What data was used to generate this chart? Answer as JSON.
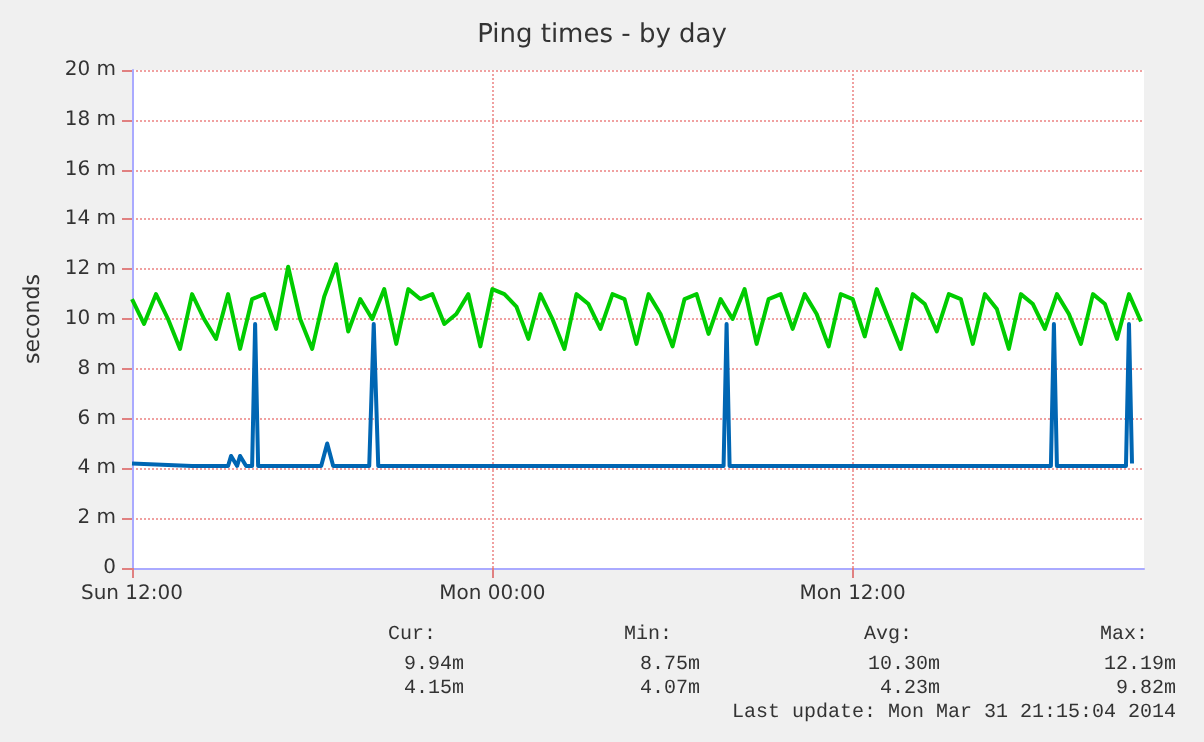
{
  "chart_data": {
    "type": "line",
    "title": "Ping times - by day",
    "ylabel": "seconds",
    "xlim": [
      "2014-03-30T12:00",
      "2014-03-31T21:42"
    ],
    "xticks": [
      {
        "value": "2014-03-30T12:00",
        "label": "Sun 12:00"
      },
      {
        "value": "2014-03-31T00:00",
        "label": "Mon 00:00"
      },
      {
        "value": "2014-03-31T12:00",
        "label": "Mon 12:00"
      }
    ],
    "ylim": [
      0,
      20
    ],
    "yticks": [
      {
        "value": 0,
        "label": "0"
      },
      {
        "value": 2,
        "label": "2 m"
      },
      {
        "value": 4,
        "label": "4 m"
      },
      {
        "value": 6,
        "label": "6 m"
      },
      {
        "value": 8,
        "label": "8 m"
      },
      {
        "value": 10,
        "label": "10 m"
      },
      {
        "value": 12,
        "label": "12 m"
      },
      {
        "value": 14,
        "label": "14 m"
      },
      {
        "value": 16,
        "label": "16 m"
      },
      {
        "value": 18,
        "label": "18 m"
      },
      {
        "value": 20,
        "label": "20 m"
      }
    ],
    "grid": true,
    "marker": "none",
    "line_style": "solid",
    "series": [
      {
        "color": "#00cc00",
        "x": [
          "2014-03-30T12:00",
          "2014-03-30T12:24",
          "2014-03-30T12:48",
          "2014-03-30T13:12",
          "2014-03-30T13:36",
          "2014-03-30T14:00",
          "2014-03-30T14:24",
          "2014-03-30T14:48",
          "2014-03-30T15:12",
          "2014-03-30T15:36",
          "2014-03-30T16:00",
          "2014-03-30T16:24",
          "2014-03-30T16:48",
          "2014-03-30T17:12",
          "2014-03-30T17:36",
          "2014-03-30T18:00",
          "2014-03-30T18:24",
          "2014-03-30T18:48",
          "2014-03-30T19:12",
          "2014-03-30T19:36",
          "2014-03-30T20:00",
          "2014-03-30T20:24",
          "2014-03-30T20:48",
          "2014-03-30T21:12",
          "2014-03-30T21:36",
          "2014-03-30T22:00",
          "2014-03-30T22:24",
          "2014-03-30T22:48",
          "2014-03-30T23:12",
          "2014-03-30T23:36",
          "2014-03-31T00:00",
          "2014-03-31T00:24",
          "2014-03-31T00:48",
          "2014-03-31T01:12",
          "2014-03-31T01:36",
          "2014-03-31T02:00",
          "2014-03-31T02:24",
          "2014-03-31T02:48",
          "2014-03-31T03:12",
          "2014-03-31T03:36",
          "2014-03-31T04:00",
          "2014-03-31T04:24",
          "2014-03-31T04:48",
          "2014-03-31T05:12",
          "2014-03-31T05:36",
          "2014-03-31T06:00",
          "2014-03-31T06:24",
          "2014-03-31T06:48",
          "2014-03-31T07:12",
          "2014-03-31T07:36",
          "2014-03-31T08:00",
          "2014-03-31T08:24",
          "2014-03-31T08:48",
          "2014-03-31T09:12",
          "2014-03-31T09:36",
          "2014-03-31T10:00",
          "2014-03-31T10:24",
          "2014-03-31T10:48",
          "2014-03-31T11:12",
          "2014-03-31T11:36",
          "2014-03-31T12:00",
          "2014-03-31T12:24",
          "2014-03-31T12:48",
          "2014-03-31T13:12",
          "2014-03-31T13:36",
          "2014-03-31T14:00",
          "2014-03-31T14:24",
          "2014-03-31T14:48",
          "2014-03-31T15:12",
          "2014-03-31T15:36",
          "2014-03-31T16:00",
          "2014-03-31T16:24",
          "2014-03-31T16:48",
          "2014-03-31T17:12",
          "2014-03-31T17:36",
          "2014-03-31T18:00",
          "2014-03-31T18:24",
          "2014-03-31T18:48",
          "2014-03-31T19:12",
          "2014-03-31T19:36",
          "2014-03-31T20:00",
          "2014-03-31T20:24",
          "2014-03-31T20:48",
          "2014-03-31T21:12",
          "2014-03-31T21:36"
        ],
        "values": [
          10.8,
          9.8,
          11,
          10,
          8.8,
          11,
          10,
          9.2,
          11,
          8.8,
          10.8,
          11,
          9.6,
          12.1,
          10,
          8.8,
          10.9,
          12.2,
          9.5,
          10.8,
          10,
          11.2,
          9,
          11.2,
          10.8,
          11,
          9.8,
          10.2,
          11,
          8.9,
          11.2,
          11,
          10.5,
          9.2,
          11,
          10,
          8.8,
          11,
          10.6,
          9.6,
          11,
          10.8,
          9,
          11,
          10.2,
          8.9,
          10.8,
          11,
          9.4,
          10.8,
          10,
          11.2,
          9,
          10.8,
          11,
          9.6,
          11,
          10.2,
          8.9,
          11,
          10.8,
          9.3,
          11.2,
          10,
          8.8,
          11,
          10.6,
          9.5,
          11,
          10.8,
          9,
          11,
          10.4,
          8.8,
          11,
          10.6,
          9.6,
          11,
          10.2,
          9,
          11,
          10.6,
          9.2,
          11,
          9.9
        ]
      },
      {
        "color": "#0066b3",
        "x": [
          "2014-03-30T12:00",
          "2014-03-30T14:00",
          "2014-03-30T15:12",
          "2014-03-30T15:18",
          "2014-03-30T15:30",
          "2014-03-30T15:36",
          "2014-03-30T15:48",
          "2014-03-30T16:00",
          "2014-03-30T16:06",
          "2014-03-30T16:12",
          "2014-03-30T17:00",
          "2014-03-30T18:18",
          "2014-03-30T18:30",
          "2014-03-30T18:42",
          "2014-03-30T19:54",
          "2014-03-30T20:03",
          "2014-03-30T20:12",
          "2014-03-31T00:00",
          "2014-03-31T04:00",
          "2014-03-31T07:42",
          "2014-03-31T07:48",
          "2014-03-31T07:54",
          "2014-03-31T12:00",
          "2014-03-31T16:00",
          "2014-03-31T18:36",
          "2014-03-31T18:42",
          "2014-03-31T18:48",
          "2014-03-31T21:06",
          "2014-03-31T21:12",
          "2014-03-31T21:18"
        ],
        "values": [
          4.2,
          4.1,
          4.1,
          4.5,
          4.1,
          4.5,
          4.1,
          4.1,
          9.8,
          4.1,
          4.1,
          4.1,
          5.0,
          4.1,
          4.1,
          9.8,
          4.1,
          4.1,
          4.1,
          4.1,
          9.8,
          4.1,
          4.1,
          4.1,
          4.1,
          9.8,
          4.1,
          4.1,
          9.8,
          4.2
        ]
      }
    ],
    "annotations": [
      "Cur:",
      "Min:",
      "Avg:",
      "Max:",
      "9.94m",
      "8.75m",
      "10.30m",
      "12.19m",
      "4.15m",
      "4.07m",
      "4.23m",
      "9.82m",
      "Last update: Mon Mar 31 21:15:04 2014"
    ]
  }
}
